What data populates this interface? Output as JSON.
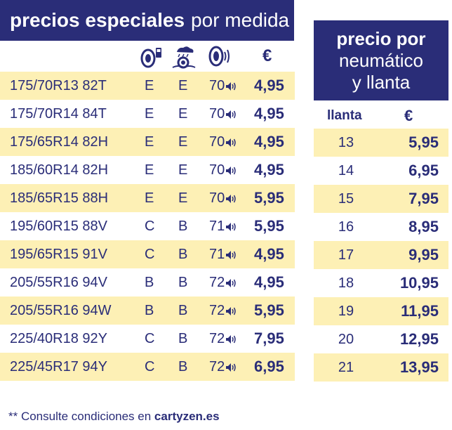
{
  "header": {
    "title_bold": "precios especiales",
    "title_light": "por medida"
  },
  "columns": {
    "fuel_icon": "fuel-efficiency-icon",
    "wet_icon": "wet-grip-icon",
    "noise_icon": "noise-icon",
    "currency": "€"
  },
  "side_header": {
    "line1": "precio por",
    "line2": "neumático",
    "line3": "y llanta"
  },
  "rim_table": {
    "rim_label": "llanta",
    "currency": "€",
    "rows": [
      {
        "rim": "13",
        "price": "5,95"
      },
      {
        "rim": "14",
        "price": "6,95"
      },
      {
        "rim": "15",
        "price": "7,95"
      },
      {
        "rim": "16",
        "price": "8,95"
      },
      {
        "rim": "17",
        "price": "9,95"
      },
      {
        "rim": "18",
        "price": "10,95"
      },
      {
        "rim": "19",
        "price": "11,95"
      },
      {
        "rim": "20",
        "price": "12,95"
      },
      {
        "rim": "21",
        "price": "13,95"
      }
    ]
  },
  "tires": [
    {
      "size": "175/70R13 82T",
      "fuel": "E",
      "wet": "E",
      "noise": "70",
      "price": "4,95"
    },
    {
      "size": "175/70R14 84T",
      "fuel": "E",
      "wet": "E",
      "noise": "70",
      "price": "4,95"
    },
    {
      "size": "175/65R14 82H",
      "fuel": "E",
      "wet": "E",
      "noise": "70",
      "price": "4,95"
    },
    {
      "size": "185/60R14 82H",
      "fuel": "E",
      "wet": "E",
      "noise": "70",
      "price": "4,95"
    },
    {
      "size": "185/65R15 88H",
      "fuel": "E",
      "wet": "E",
      "noise": "70",
      "price": "5,95"
    },
    {
      "size": "195/60R15 88V",
      "fuel": "C",
      "wet": "B",
      "noise": "71",
      "price": "5,95"
    },
    {
      "size": "195/65R15 91V",
      "fuel": "C",
      "wet": "B",
      "noise": "71",
      "price": "4,95"
    },
    {
      "size": "205/55R16 94V",
      "fuel": "B",
      "wet": "B",
      "noise": "72",
      "price": "4,95"
    },
    {
      "size": "205/55R16 94W",
      "fuel": "B",
      "wet": "B",
      "noise": "72",
      "price": "5,95"
    },
    {
      "size": "225/40R18 92Y",
      "fuel": "C",
      "wet": "B",
      "noise": "72",
      "price": "7,95"
    },
    {
      "size": "225/45R17 94Y",
      "fuel": "C",
      "wet": "B",
      "noise": "72",
      "price": "6,95"
    }
  ],
  "footer": {
    "text": "** Consulte condiciones en",
    "site": "cartyzen.es"
  },
  "colors": {
    "navy": "#2a2d78",
    "row_highlight": "#fdf0b5",
    "white": "#ffffff"
  }
}
